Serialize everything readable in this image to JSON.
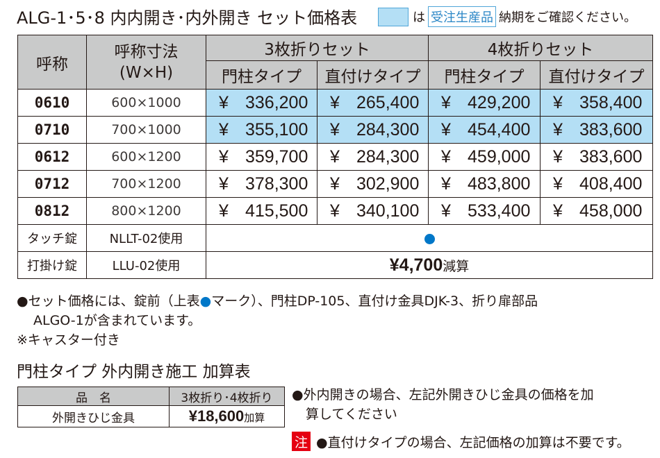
{
  "title": "ALG-1･5･8 内内開き･内外開き セット価格表",
  "legend": {
    "particle": "は",
    "tag": "受注生産品",
    "text": "納期をご確認ください。",
    "swatch_color": "#b4dff5"
  },
  "table": {
    "headers": {
      "name": "呼称",
      "size_line1": "呼称寸法",
      "size_line2": "(W×H)",
      "group3": "3枚折りセット",
      "group4": "4枚折りセット",
      "sub_a": "門柱タイプ",
      "sub_b": "直付けタイプ",
      "sub_c": "門柱タイプ",
      "sub_d": "直付けタイプ"
    },
    "yen_symbol": "¥",
    "rows": [
      {
        "name": "0610",
        "size": "600×1000",
        "p1": "336,200",
        "p2": "265,400",
        "p3": "429,200",
        "p4": "358,400"
      },
      {
        "name": "0710",
        "size": "700×1000",
        "p1": "355,100",
        "p2": "284,300",
        "p3": "454,400",
        "p4": "383,600"
      },
      {
        "name": "0612",
        "size": "600×1200",
        "p1": "359,700",
        "p2": "284,300",
        "p3": "459,000",
        "p4": "383,600"
      },
      {
        "name": "0712",
        "size": "700×1200",
        "p1": "378,300",
        "p2": "302,900",
        "p3": "483,800",
        "p4": "408,400"
      },
      {
        "name": "0812",
        "size": "800×1200",
        "p1": "415,500",
        "p2": "340,100",
        "p3": "533,400",
        "p4": "458,000"
      }
    ],
    "options": [
      {
        "name": "タッチ錠",
        "code": "NLLT-02使用"
      },
      {
        "name": "打掛け錠",
        "code": "LLU-02使用",
        "value": "¥4,700",
        "suffix": "減算"
      }
    ],
    "highlight_color": "#b4dff5"
  },
  "notes": {
    "line1a": "●セット価格には、錠前（上表",
    "dot": "●",
    "line1b": "マーク）、門柱DP-105、直付け金具DJK-3、折り扉部品",
    "line2": "ALGO-1が含まれています。",
    "line3": "※キャスター付き"
  },
  "sub": {
    "title": "門柱タイプ 外内開き施工 加算表",
    "header_item": "品　名",
    "header_price": "3枚折り･4枚折り",
    "item": "外開きひじ金具",
    "price": "¥18,600",
    "price_suffix": "加算"
  },
  "right_notes": {
    "line1": "●外内開きの場合、左記外開きひじ金具の価格を加",
    "line2": "算してください",
    "badge": "注",
    "line3": "●直付けタイプの場合、左記価格の加算は不要です。"
  }
}
